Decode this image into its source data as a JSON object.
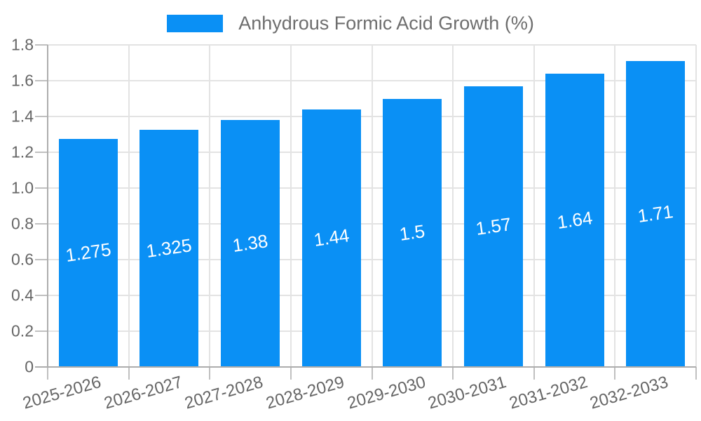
{
  "chart_data": {
    "type": "bar",
    "title": "",
    "legend": {
      "label": "Anhydrous Formic Acid Growth (%)",
      "position": "top"
    },
    "categories": [
      "2025-2026",
      "2026-2027",
      "2027-2028",
      "2028-2029",
      "2029-2030",
      "2030-2031",
      "2031-2032",
      "2032-2033"
    ],
    "series": [
      {
        "name": "Anhydrous Formic Acid Growth (%)",
        "values": [
          1.275,
          1.325,
          1.38,
          1.44,
          1.5,
          1.57,
          1.64,
          1.71
        ]
      }
    ],
    "value_labels": [
      "1.275",
      "1.325",
      "1.38",
      "1.44",
      "1.5",
      "1.57",
      "1.64",
      "1.71"
    ],
    "xlabel": "",
    "ylabel": "",
    "ylim": [
      0,
      1.8
    ],
    "y_tick_step": 0.2,
    "y_tick_labels": [
      "1.8",
      "1.6",
      "1.4",
      "1.2",
      "1.0",
      "0.8",
      "0.6",
      "0.4",
      "0.2",
      "0"
    ],
    "grid": "both",
    "legend_position": "top",
    "colors": {
      "bar": "#0a90f5",
      "grid": "#e3e3e3",
      "axis": "#adadad",
      "tick": "#c0c0c0",
      "tick_label_text": "#666666",
      "value_label_text": "#ffffff",
      "legend_text": "#6e6e6e",
      "background": "#ffffff"
    }
  }
}
